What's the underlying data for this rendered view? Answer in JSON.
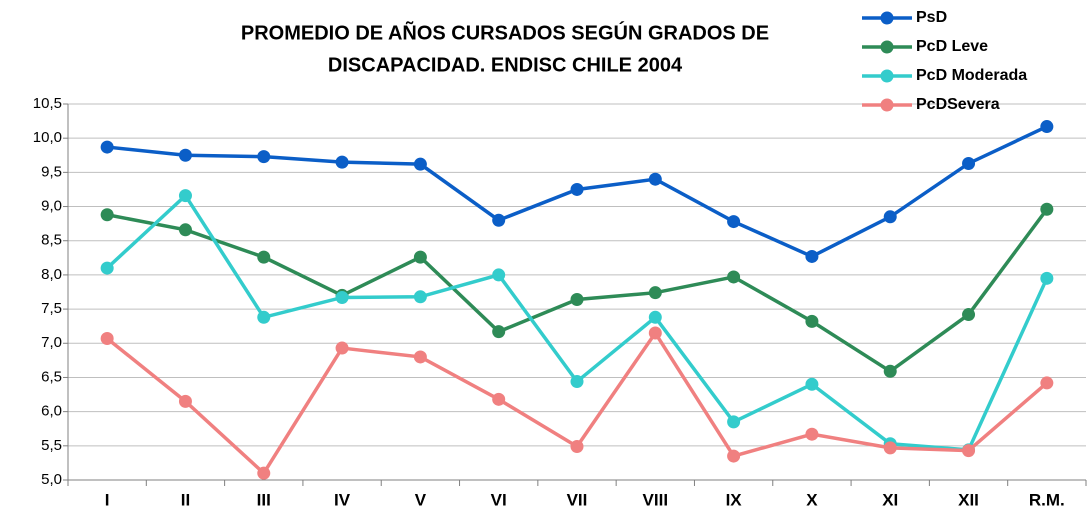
{
  "chart_data": {
    "type": "line",
    "title": [
      "PROMEDIO DE AÑOS CURSADOS SEGÚN GRADOS DE",
      "DISCAPACIDAD. ENDISC CHILE 2004"
    ],
    "categories": [
      "I",
      "II",
      "III",
      "IV",
      "V",
      "VI",
      "VII",
      "VIII",
      "IX",
      "X",
      "XI",
      "XII",
      "R.M."
    ],
    "series": [
      {
        "name": "PsD",
        "color": "#0b5ec7",
        "values": [
          9.87,
          9.75,
          9.73,
          9.65,
          9.62,
          8.8,
          9.25,
          9.4,
          8.78,
          8.27,
          8.85,
          9.63,
          10.17
        ]
      },
      {
        "name": "PcD Leve",
        "color": "#2e8b57",
        "values": [
          8.88,
          8.66,
          8.26,
          7.7,
          8.26,
          7.17,
          7.64,
          7.74,
          7.97,
          7.32,
          6.59,
          7.42,
          8.96
        ]
      },
      {
        "name": "PcD Moderada",
        "color": "#33cccc",
        "values": [
          8.1,
          9.16,
          7.38,
          7.67,
          7.68,
          8.0,
          6.44,
          7.38,
          5.85,
          6.4,
          5.53,
          5.44,
          7.95
        ]
      },
      {
        "name": "PcDSevera",
        "color": "#f08080",
        "values": [
          7.07,
          6.15,
          5.1,
          6.93,
          6.8,
          6.18,
          5.49,
          7.15,
          5.35,
          5.67,
          5.47,
          5.43,
          6.42
        ]
      }
    ],
    "ylim": [
      5,
      10.5
    ],
    "yticks": [
      {
        "value": 5,
        "label": "5,0"
      },
      {
        "value": 5.5,
        "label": "5,5"
      },
      {
        "value": 6,
        "label": "6,0"
      },
      {
        "value": 6.5,
        "label": "6,5"
      },
      {
        "value": 7,
        "label": "7,0"
      },
      {
        "value": 7.5,
        "label": "7,5"
      },
      {
        "value": 8,
        "label": "8,0"
      },
      {
        "value": 8.5,
        "label": "8,5"
      },
      {
        "value": 9,
        "label": "9,0"
      },
      {
        "value": 9.5,
        "label": "9,5"
      },
      {
        "value": 10,
        "label": "10,0"
      },
      {
        "value": 10.5,
        "label": "10,5"
      }
    ],
    "grid": true,
    "legend": "top-right"
  }
}
